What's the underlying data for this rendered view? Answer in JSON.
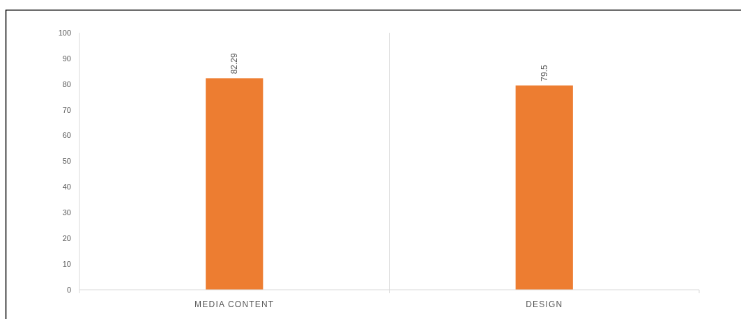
{
  "chart_data": {
    "type": "bar",
    "categories": [
      "MEDIA CONTENT",
      "DESIGN"
    ],
    "values": [
      82.29,
      79.5
    ],
    "color": "#ed7d31",
    "ylim": [
      0,
      100
    ],
    "yticks": [
      0,
      10,
      20,
      30,
      40,
      50,
      60,
      70,
      80,
      90,
      100
    ],
    "grid": "x",
    "data_labels": true
  }
}
